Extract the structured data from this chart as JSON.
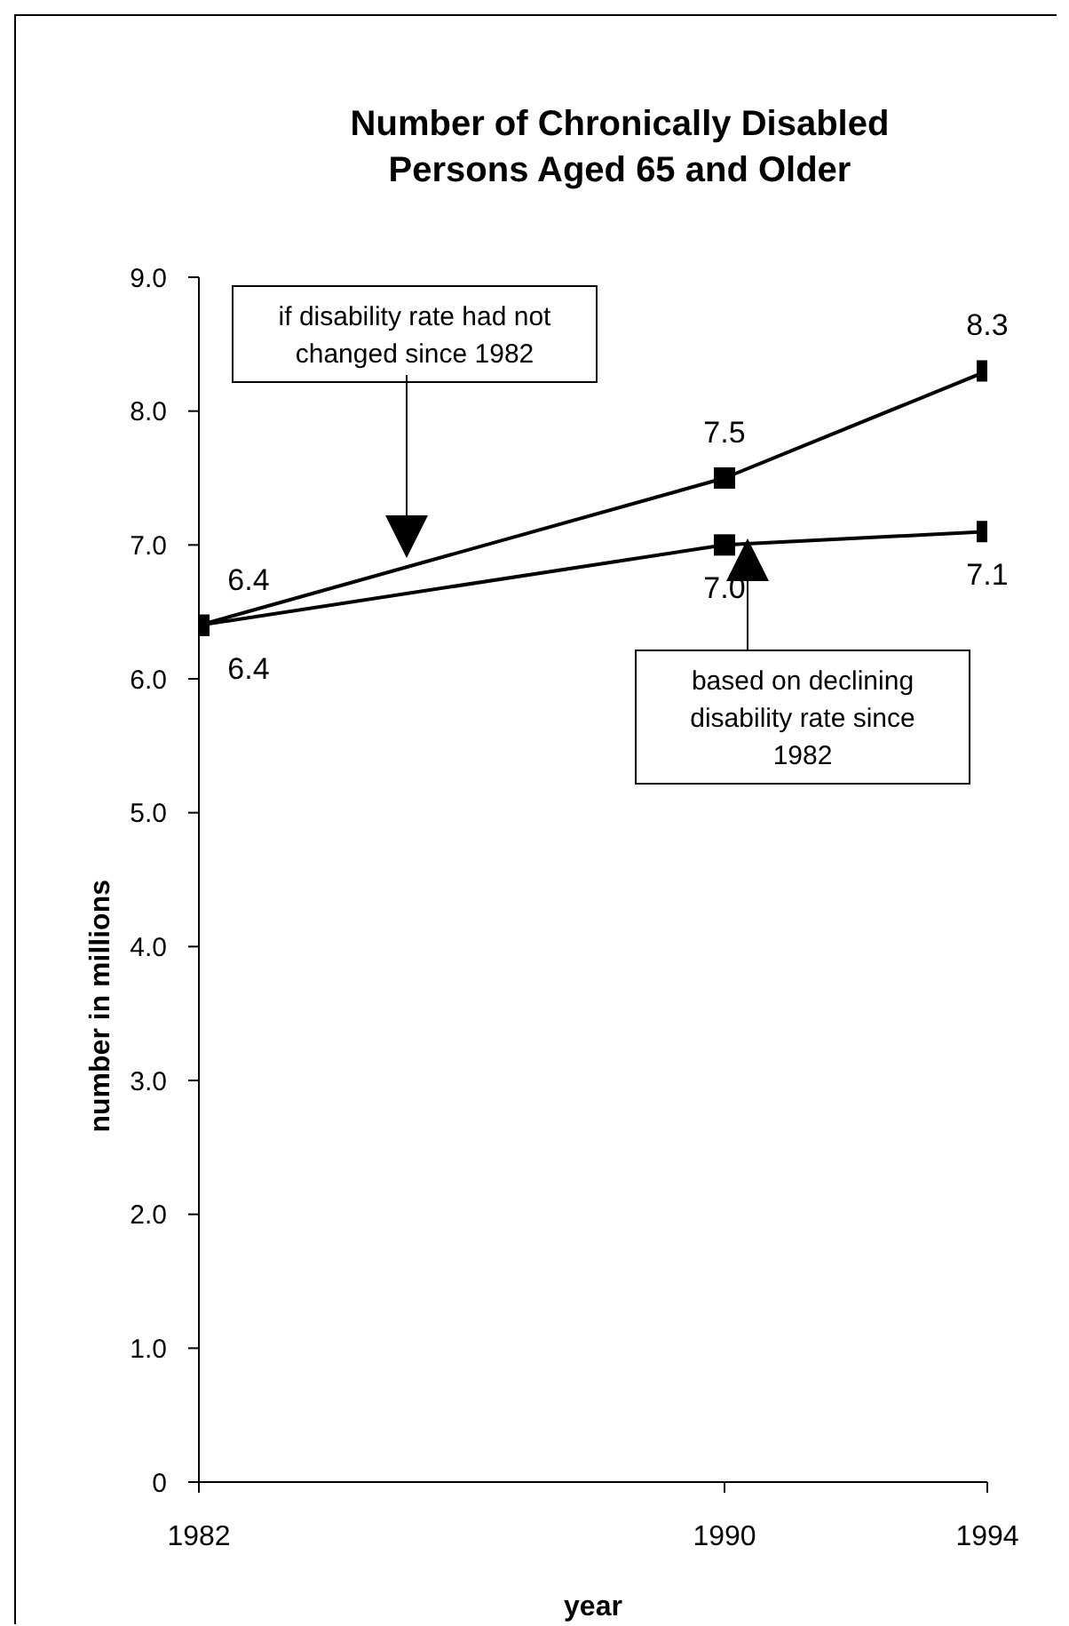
{
  "chart_data": {
    "type": "line",
    "title": "Number of Chronically Disabled Persons Aged 65 and Older",
    "xlabel": "year",
    "ylabel": "number in millions",
    "x": [
      1982,
      1990,
      1994
    ],
    "series": [
      {
        "color": "#000000",
        "values": [
          6.4,
          7.5,
          8.3
        ],
        "value_labels": [
          "6.4",
          "7.5",
          "8.3"
        ]
      },
      {
        "color": "#000000",
        "values": [
          6.4,
          7.0,
          7.1
        ],
        "value_labels": [
          "6.4",
          "7.0",
          "7.1"
        ]
      }
    ],
    "xlim": [
      1982,
      1994
    ],
    "xticks": [
      1982,
      1990,
      1994
    ],
    "ylim": [
      0,
      9
    ],
    "yticks": [
      0,
      {
        "value": 1,
        "label": "1.0"
      },
      {
        "value": 2,
        "label": "2.0"
      },
      {
        "value": 3,
        "label": "3.0"
      },
      {
        "value": 4,
        "label": "4.0"
      },
      {
        "value": 5,
        "label": "5.0"
      },
      {
        "value": 6,
        "label": "6.0"
      },
      {
        "value": 7,
        "label": "7.0"
      },
      {
        "value": 8,
        "label": "8.0"
      },
      {
        "value": 9,
        "label": "9.0"
      }
    ],
    "annotations": [
      "if disability rate had not changed since 1982",
      "based on declining disability rate since 1982"
    ],
    "marker": "square",
    "line_style": "solid",
    "grid": false,
    "legend": false
  }
}
